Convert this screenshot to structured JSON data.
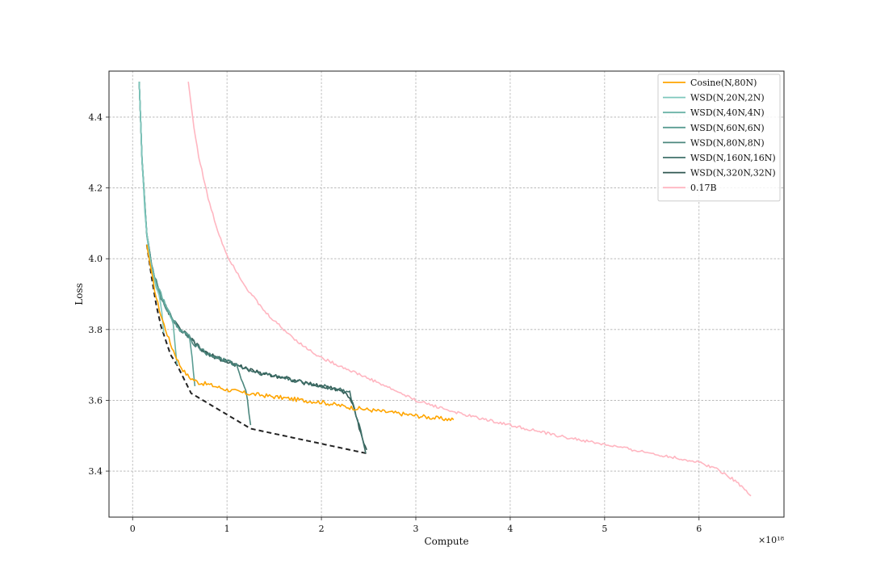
{
  "chart_data": {
    "type": "line",
    "title": "",
    "xlabel": "Compute",
    "ylabel": "Loss",
    "x_offset_label": "×10¹⁸",
    "xlim": [
      -0.25,
      6.9
    ],
    "ylim": [
      3.27,
      4.53
    ],
    "xticks": [
      0,
      1,
      2,
      3,
      4,
      5,
      6
    ],
    "yticks": [
      3.4,
      3.6,
      3.8,
      4.0,
      4.2,
      4.4
    ],
    "ytick_labels": [
      "3.4",
      "3.6",
      "3.8",
      "4.0",
      "4.2",
      "4.4"
    ],
    "grid": true,
    "legend_position": "top-right",
    "series": [
      {
        "name": "Cosine(N,80N)",
        "color": "#FFA500",
        "dashed": false,
        "jitter": 0.006,
        "x": [
          0.15,
          0.2,
          0.25,
          0.3,
          0.35,
          0.4,
          0.45,
          0.5,
          0.55,
          0.6,
          0.7,
          0.8,
          1.0,
          1.2,
          1.5,
          1.8,
          2.0,
          2.3,
          2.6,
          2.9,
          3.2,
          3.4
        ],
        "y": [
          4.04,
          3.96,
          3.89,
          3.84,
          3.8,
          3.76,
          3.73,
          3.7,
          3.68,
          3.665,
          3.65,
          3.645,
          3.63,
          3.62,
          3.61,
          3.6,
          3.595,
          3.58,
          3.57,
          3.56,
          3.55,
          3.545
        ]
      },
      {
        "name": "WSD(N,20N,2N)",
        "color": "#7fc7bd",
        "dashed": false,
        "jitter": 0.004,
        "x": [
          0.07,
          0.1,
          0.13,
          0.16,
          0.19,
          0.22,
          0.25,
          0.28,
          0.31,
          0.33
        ],
        "y": [
          4.5,
          4.28,
          4.13,
          4.05,
          3.99,
          3.95,
          3.92,
          3.9,
          3.85,
          3.79
        ]
      },
      {
        "name": "WSD(N,40N,4N)",
        "color": "#6bb3a7",
        "dashed": false,
        "jitter": 0.005,
        "x": [
          0.07,
          0.1,
          0.15,
          0.2,
          0.25,
          0.3,
          0.35,
          0.4,
          0.43,
          0.45,
          0.47
        ],
        "y": [
          4.5,
          4.28,
          4.07,
          3.98,
          3.93,
          3.9,
          3.87,
          3.84,
          3.82,
          3.76,
          3.7
        ]
      },
      {
        "name": "WSD(N,60N,6N)",
        "color": "#5a9d93",
        "dashed": false,
        "jitter": 0.006,
        "x": [
          0.07,
          0.1,
          0.15,
          0.2,
          0.25,
          0.3,
          0.4,
          0.5,
          0.6,
          0.63,
          0.66
        ],
        "y": [
          4.5,
          4.28,
          4.07,
          3.98,
          3.93,
          3.89,
          3.84,
          3.8,
          3.78,
          3.72,
          3.64
        ]
      },
      {
        "name": "WSD(N,80N,8N)",
        "color": "#4c877e",
        "dashed": false,
        "jitter": 0.006,
        "x": [
          0.07,
          0.1,
          0.15,
          0.2,
          0.3,
          0.4,
          0.5,
          0.6,
          0.65,
          0.7,
          0.8,
          0.9,
          1.0,
          1.1,
          1.2,
          1.25
        ],
        "y": [
          4.5,
          4.28,
          4.07,
          3.98,
          3.89,
          3.84,
          3.8,
          3.78,
          3.76,
          3.75,
          3.73,
          3.72,
          3.71,
          3.7,
          3.63,
          3.53
        ]
      },
      {
        "name": "WSD(N,160N,16N)",
        "color": "#3f7069",
        "dashed": false,
        "jitter": 0.006,
        "x": [
          0.07,
          0.1,
          0.15,
          0.2,
          0.3,
          0.4,
          0.5,
          0.6,
          0.7,
          0.8,
          0.9,
          1.0,
          1.1,
          1.2,
          1.3,
          1.4,
          1.6,
          1.8,
          2.0,
          2.2,
          2.3,
          2.4,
          2.47
        ],
        "y": [
          4.5,
          4.28,
          4.07,
          3.98,
          3.89,
          3.84,
          3.8,
          3.78,
          3.75,
          3.73,
          3.72,
          3.71,
          3.7,
          3.69,
          3.68,
          3.675,
          3.665,
          3.65,
          3.64,
          3.63,
          3.62,
          3.53,
          3.45
        ]
      },
      {
        "name": "WSD(N,320N,32N)",
        "color": "#2f5751",
        "dashed": false,
        "jitter": 0.006,
        "x": [
          0.07,
          0.1,
          0.15,
          0.2,
          0.3,
          0.4,
          0.5,
          0.6,
          0.7,
          0.8,
          0.9,
          1.0,
          1.1,
          1.2,
          1.3,
          1.4,
          1.6,
          1.8,
          2.0,
          2.2,
          2.3,
          2.35,
          2.45,
          2.48
        ],
        "y": [
          4.5,
          4.28,
          4.07,
          3.98,
          3.89,
          3.84,
          3.8,
          3.78,
          3.75,
          3.73,
          3.72,
          3.71,
          3.7,
          3.69,
          3.68,
          3.675,
          3.665,
          3.65,
          3.64,
          3.63,
          3.61,
          3.57,
          3.48,
          3.46
        ]
      },
      {
        "name": "0.17B",
        "color": "#FFB6C1",
        "dashed": false,
        "jitter": 0.004,
        "x": [
          0.59,
          0.65,
          0.7,
          0.8,
          0.9,
          1.0,
          1.2,
          1.4,
          1.6,
          1.8,
          2.0,
          2.3,
          2.6,
          3.0,
          3.5,
          4.0,
          4.5,
          5.0,
          5.5,
          6.0,
          6.2,
          6.4,
          6.55
        ],
        "y": [
          4.5,
          4.37,
          4.29,
          4.17,
          4.08,
          4.01,
          3.92,
          3.85,
          3.8,
          3.755,
          3.72,
          3.685,
          3.65,
          3.6,
          3.56,
          3.53,
          3.5,
          3.475,
          3.45,
          3.425,
          3.405,
          3.37,
          3.33
        ]
      },
      {
        "name": "",
        "color": "#222222",
        "dashed": true,
        "jitter": 0,
        "x": [
          0.15,
          0.2,
          0.25,
          0.3,
          0.35,
          0.4,
          0.47,
          0.62,
          1.25,
          2.48
        ],
        "y": [
          4.04,
          3.95,
          3.87,
          3.81,
          3.77,
          3.73,
          3.7,
          3.62,
          3.52,
          3.45
        ]
      }
    ]
  }
}
